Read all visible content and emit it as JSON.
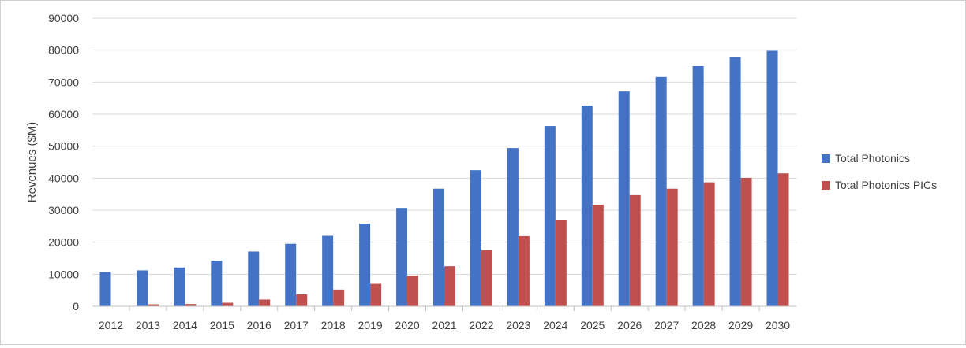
{
  "chart_data": {
    "type": "bar",
    "title": "",
    "xlabel": "",
    "ylabel": "Revenues ($M)",
    "ylim": [
      0,
      90000
    ],
    "ytick_step": 10000,
    "yticks": [
      "0",
      "10000",
      "20000",
      "30000",
      "40000",
      "50000",
      "60000",
      "70000",
      "80000",
      "90000"
    ],
    "grid": true,
    "legend_position": "right",
    "categories": [
      "2012",
      "2013",
      "2014",
      "2015",
      "2016",
      "2017",
      "2018",
      "2019",
      "2020",
      "2021",
      "2022",
      "2023",
      "2024",
      "2025",
      "2026",
      "2027",
      "2028",
      "2029",
      "2030"
    ],
    "series": [
      {
        "name": "Total Photonics",
        "color": "#4472C4",
        "values": [
          10700,
          11200,
          12100,
          14200,
          17100,
          19500,
          22000,
          25800,
          30700,
          36700,
          42500,
          49400,
          56300,
          62700,
          67100,
          71600,
          75000,
          77900,
          79800
        ]
      },
      {
        "name": "Total Photonics PICs",
        "color": "#C0504D",
        "values": [
          0,
          600,
          700,
          1100,
          2100,
          3700,
          5200,
          7000,
          9600,
          12500,
          17500,
          21900,
          26800,
          31700,
          34700,
          36700,
          38700,
          40100,
          41500
        ]
      }
    ]
  }
}
